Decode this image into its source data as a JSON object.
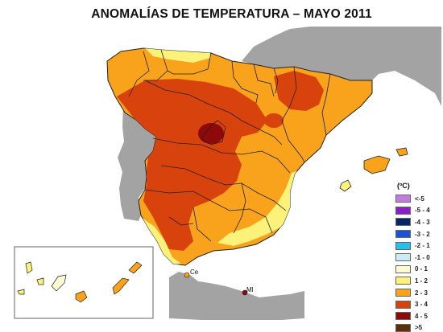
{
  "title": "ANOMALÍAS DE TEMPERATURA – MAYO 2011",
  "legend": {
    "unit": "(ºC)",
    "items": [
      {
        "label": "<-5",
        "color": "#c37be0"
      },
      {
        "label": "-5 - 4",
        "color": "#8b1fc4"
      },
      {
        "label": "-4 - 3",
        "color": "#0d2463"
      },
      {
        "label": "-3 - 2",
        "color": "#1a52d6"
      },
      {
        "label": "-2 - 1",
        "color": "#27c0e8"
      },
      {
        "label": "-1 - 0",
        "color": "#c9ecf7"
      },
      {
        "label": "0 - 1",
        "color": "#fdf9d2"
      },
      {
        "label": "1 - 2",
        "color": "#fcf27a"
      },
      {
        "label": "2 - 3",
        "color": "#f9a21b"
      },
      {
        "label": "3 - 4",
        "color": "#d8420c"
      },
      {
        "label": "4 - 5",
        "color": "#8e0a0a"
      },
      {
        "label": ">5",
        "color": "#5b2f0c"
      }
    ]
  },
  "cities": {
    "ceuta": "Ce",
    "melilla": "Ml"
  },
  "colors": {
    "background_land": "#a3a3a3",
    "sea": "#ffffff",
    "anomaly_0_1": "#fdf9d2",
    "anomaly_1_2": "#fcf27a",
    "anomaly_2_3": "#f9a21b",
    "anomaly_3_4": "#d8420c",
    "anomaly_4_5": "#8e0a0a"
  }
}
